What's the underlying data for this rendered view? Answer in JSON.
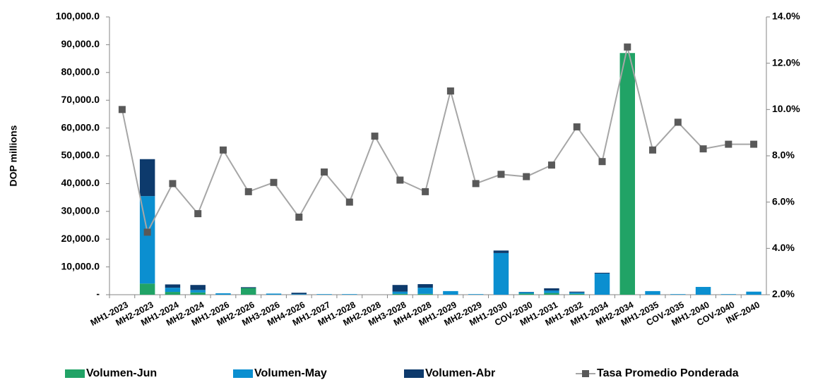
{
  "chart_data": {
    "type": "bar",
    "y_label": "DOP millions",
    "categories": [
      "MH1-2023",
      "MH2-2023",
      "MH1-2024",
      "MH2-2024",
      "MH1-2026",
      "MH2-2026",
      "MH3-2026",
      "MH4-2026",
      "MH1-2027",
      "MH1-2028",
      "MH2-2028",
      "MH3-2028",
      "MH4-2028",
      "MH1-2029",
      "MH2-2029",
      "MH1-2030",
      "COV-2030",
      "MH1-2031",
      "MH1-2032",
      "MH1-2034",
      "MH2-2034",
      "MH1-2035",
      "COV-2035",
      "MH1-2040",
      "COV-2040",
      "INF-2040"
    ],
    "series": [
      {
        "name": "Volumen-Jun",
        "type": "bar",
        "color": "#21a366",
        "values": [
          0,
          4000,
          1000,
          800,
          0,
          2400,
          0,
          0,
          0,
          0,
          0,
          300,
          300,
          0,
          0,
          0,
          400,
          600,
          300,
          0,
          87000,
          0,
          0,
          0,
          0,
          0
        ]
      },
      {
        "name": "Volumen-May",
        "type": "bar",
        "color": "#0b8fd0",
        "values": [
          0,
          31500,
          1500,
          900,
          500,
          0,
          400,
          200,
          200,
          200,
          0,
          800,
          2200,
          1300,
          200,
          15000,
          500,
          900,
          500,
          7600,
          0,
          1300,
          200,
          2800,
          200,
          1100
        ]
      },
      {
        "name": "Volumen-Abr",
        "type": "bar",
        "color": "#0d3a6c",
        "values": [
          0,
          13300,
          1200,
          1800,
          0,
          300,
          0,
          500,
          0,
          0,
          0,
          2400,
          1300,
          0,
          0,
          900,
          100,
          800,
          300,
          300,
          0,
          0,
          0,
          0,
          0,
          0
        ]
      },
      {
        "name": "Tasa Promedio Ponderada",
        "type": "line",
        "axis": "y2",
        "color": "#a6a6a6",
        "marker_color": "#595959",
        "values": [
          10.0,
          4.7,
          6.8,
          5.5,
          8.25,
          6.45,
          6.85,
          5.35,
          7.3,
          6.0,
          8.85,
          6.95,
          6.45,
          10.8,
          6.8,
          7.2,
          7.1,
          7.6,
          9.25,
          7.75,
          12.7,
          8.25,
          9.45,
          8.3,
          8.5,
          8.5
        ]
      }
    ],
    "ylim": [
      0,
      100000
    ],
    "yticks": [
      {
        "value": 0,
        "label": "-"
      },
      {
        "value": 10000,
        "label": "10,000.0"
      },
      {
        "value": 20000,
        "label": "20,000.0"
      },
      {
        "value": 30000,
        "label": "30,000.0"
      },
      {
        "value": 40000,
        "label": "40,000.0"
      },
      {
        "value": 50000,
        "label": "50,000.0"
      },
      {
        "value": 60000,
        "label": "60,000.0"
      },
      {
        "value": 70000,
        "label": "70,000.0"
      },
      {
        "value": 80000,
        "label": "80,000.0"
      },
      {
        "value": 90000,
        "label": "90,000.0"
      },
      {
        "value": 100000,
        "label": "100,000.0"
      }
    ],
    "y2lim": [
      2,
      14
    ],
    "y2ticks": [
      {
        "value": 2,
        "label": "2.0%"
      },
      {
        "value": 4,
        "label": "4.0%"
      },
      {
        "value": 6,
        "label": "6.0%"
      },
      {
        "value": 8,
        "label": "8.0%"
      },
      {
        "value": 10,
        "label": "10.0%"
      },
      {
        "value": 12,
        "label": "12.0%"
      },
      {
        "value": 14,
        "label": "14.0%"
      }
    ],
    "grid": false,
    "legend": "bottom"
  }
}
